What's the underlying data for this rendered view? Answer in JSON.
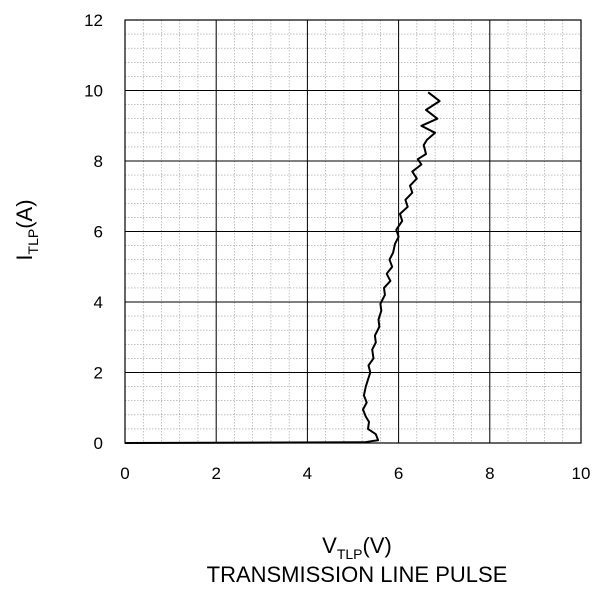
{
  "chart_data": {
    "type": "line",
    "title": "",
    "subtitle": "TRANSMISSION LINE PULSE",
    "xlabel": {
      "main": "V",
      "sub": "TLP",
      "unit": "(V)"
    },
    "ylabel": {
      "main": "I",
      "sub": "TLP",
      "unit": "(A)"
    },
    "xlim": [
      0,
      10
    ],
    "ylim": [
      0,
      12
    ],
    "x_ticks": [
      0,
      2,
      4,
      6,
      8,
      10
    ],
    "y_ticks": [
      0,
      2,
      4,
      6,
      8,
      10,
      12
    ],
    "x_tick_labels": [
      "0",
      "2",
      "4",
      "6",
      "8",
      "10"
    ],
    "y_tick_labels": [
      "0",
      "2",
      "4",
      "6",
      "8",
      "10",
      "12"
    ],
    "grid": true,
    "minor_grid": true,
    "line_color": "#000000",
    "series": [
      {
        "x": [
          0,
          5.25,
          5.4,
          5.55,
          5.5,
          5.33,
          5.35,
          5.28,
          5.22,
          5.3,
          5.24,
          5.28,
          5.33,
          5.38,
          5.34,
          5.45,
          5.42,
          5.5,
          5.48,
          5.58,
          5.56,
          5.62,
          5.6,
          5.7,
          5.68,
          5.82,
          5.74,
          5.86,
          5.8,
          5.88,
          5.92,
          6.0,
          5.95,
          6.08,
          6.03,
          6.2,
          6.15,
          6.3,
          6.25,
          6.4,
          6.3,
          6.5,
          6.42,
          6.6,
          6.55,
          6.62,
          6.8,
          6.5,
          6.85,
          6.6,
          6.9,
          6.65
        ],
        "y": [
          0,
          0.02,
          0.05,
          0.08,
          0.25,
          0.4,
          0.6,
          0.75,
          0.95,
          1.15,
          1.35,
          1.6,
          1.8,
          2.0,
          2.2,
          2.4,
          2.65,
          2.85,
          3.05,
          3.3,
          3.5,
          3.75,
          3.95,
          4.2,
          4.4,
          4.6,
          4.8,
          5.0,
          5.2,
          5.4,
          5.65,
          5.85,
          6.05,
          6.3,
          6.5,
          6.7,
          6.9,
          7.1,
          7.3,
          7.5,
          7.7,
          7.9,
          8.05,
          8.2,
          8.45,
          8.6,
          8.8,
          9.0,
          9.2,
          9.45,
          9.7,
          9.95
        ]
      }
    ]
  }
}
